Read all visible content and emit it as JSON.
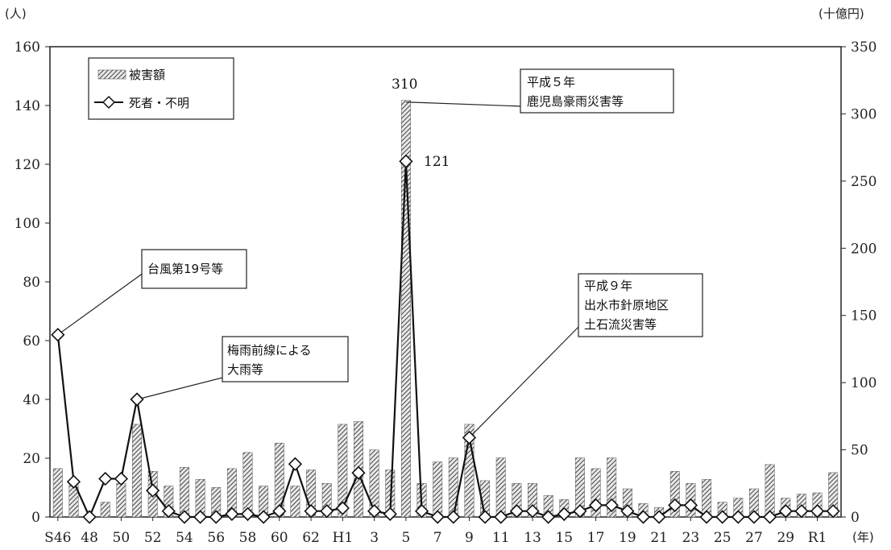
{
  "chart_data": {
    "type": "bar+line",
    "left_axis_unit": "(人)",
    "right_axis_unit": "(十億円)",
    "x_axis_unit": "(年)",
    "left_ylim": [
      0,
      160
    ],
    "right_ylim": [
      0,
      350
    ],
    "left_ticks": [
      "0",
      "20",
      "40",
      "60",
      "80",
      "100",
      "120",
      "140",
      "160"
    ],
    "right_ticks": [
      "0",
      "50",
      "100",
      "150",
      "200",
      "250",
      "300",
      "350"
    ],
    "categories": [
      "S46",
      "47",
      "48",
      "49",
      "50",
      "51",
      "52",
      "53",
      "54",
      "55",
      "56",
      "57",
      "58",
      "59",
      "60",
      "61",
      "62",
      "63",
      "H1",
      "2",
      "3",
      "4",
      "5",
      "6",
      "7",
      "8",
      "9",
      "10",
      "11",
      "12",
      "13",
      "14",
      "15",
      "16",
      "17",
      "18",
      "19",
      "20",
      "21",
      "22",
      "23",
      "24",
      "25",
      "26",
      "27",
      "28",
      "29",
      "30",
      "R1",
      "2"
    ],
    "x_tick_labels": [
      "S46",
      "48",
      "50",
      "52",
      "54",
      "56",
      "58",
      "60",
      "62",
      "H1",
      "3",
      "5",
      "7",
      "9",
      "11",
      "13",
      "15",
      "17",
      "19",
      "21",
      "23",
      "25",
      "27",
      "29",
      "R1"
    ],
    "series": [
      {
        "name": "被害額",
        "axis": "right",
        "kind": "bar",
        "values": [
          36,
          24,
          0,
          11,
          25,
          69,
          34,
          23,
          37,
          28,
          22,
          36,
          48,
          23,
          55,
          23,
          35,
          25,
          69,
          71,
          50,
          35,
          310,
          25,
          41,
          44,
          69,
          27,
          44,
          25,
          25,
          16,
          13,
          44,
          36,
          44,
          21,
          10,
          7,
          34,
          25,
          28,
          11,
          14,
          21,
          39,
          14,
          17,
          18,
          33
        ]
      },
      {
        "name": "死者・不明",
        "axis": "left",
        "kind": "line",
        "values": [
          62,
          12,
          0,
          13,
          13,
          40,
          9,
          2,
          0,
          0,
          0,
          1,
          1,
          0,
          2,
          18,
          2,
          2,
          3,
          15,
          2,
          1,
          121,
          2,
          0,
          0,
          27,
          0,
          0,
          2,
          2,
          0,
          1,
          2,
          4,
          4,
          2,
          0,
          0,
          4,
          4,
          0,
          0,
          0,
          0,
          0,
          2,
          2,
          2,
          2
        ]
      }
    ],
    "data_labels": {
      "bar_peak": "310",
      "line_peak": "121"
    },
    "legend": {
      "placement": "top-left",
      "bar_label": "被害額",
      "line_label": "死者・不明"
    },
    "annotations": [
      {
        "lines": [
          "台風第19号等"
        ]
      },
      {
        "lines": [
          "梅雨前線による",
          "大雨等"
        ]
      },
      {
        "lines": [
          "平成５年",
          "鹿児島豪雨災害等"
        ]
      },
      {
        "lines": [
          "平成９年",
          "出水市針原地区",
          "土石流災害等"
        ]
      }
    ],
    "grid": false
  }
}
